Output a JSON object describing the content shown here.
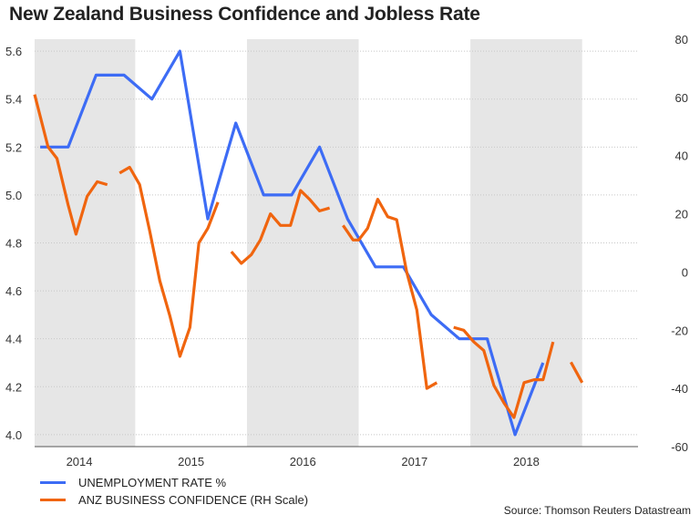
{
  "chart_data": {
    "type": "line",
    "title": "New Zealand Business Confidence and Jobless Rate",
    "source": "Source: Thomson Reuters Datastream",
    "x_axis": {
      "range": [
        2013.6,
        2019.0
      ],
      "tick_labels": [
        "2014",
        "2015",
        "2016",
        "2017",
        "2018"
      ],
      "tick_positions": [
        2014.0,
        2015.0,
        2016.0,
        2017.0,
        2018.0
      ]
    },
    "y_left": {
      "range": [
        3.95,
        5.65
      ],
      "ticks": [
        4.0,
        4.2,
        4.4,
        4.6,
        4.8,
        5.0,
        5.2,
        5.4,
        5.6
      ],
      "tick_labels": [
        "4.0",
        "4.2",
        "4.4",
        "4.6",
        "4.8",
        "5.0",
        "5.2",
        "5.4",
        "5.6"
      ]
    },
    "y_right": {
      "range": [
        -60,
        80
      ],
      "ticks": [
        -60,
        -40,
        -20,
        0,
        20,
        40,
        60,
        80
      ],
      "tick_labels": [
        "-60",
        "-40",
        "-20",
        "0",
        "20",
        "40",
        "60",
        "80"
      ]
    },
    "grid": true,
    "shaded_years": [
      [
        2013.6,
        2014.5
      ],
      [
        2015.5,
        2016.5
      ],
      [
        2017.5,
        2018.5
      ]
    ],
    "legend_position": "bottom-left",
    "series": [
      {
        "name": "UNEMPLOYMENT RATE %",
        "axis": "left",
        "color": "#3d6cf5",
        "segments": [
          [
            [
              2013.65,
              5.2
            ],
            [
              2013.9,
              5.2
            ],
            [
              2014.15,
              5.5
            ],
            [
              2014.4,
              5.5
            ],
            [
              2014.65,
              5.4
            ],
            [
              2014.9,
              5.6
            ],
            [
              2015.15,
              4.9
            ],
            [
              2015.4,
              5.3
            ],
            [
              2015.65,
              5.0
            ],
            [
              2015.9,
              5.0
            ],
            [
              2016.15,
              5.2
            ],
            [
              2016.4,
              4.9
            ],
            [
              2016.65,
              4.7
            ],
            [
              2016.9,
              4.7
            ],
            [
              2017.15,
              4.5
            ],
            [
              2017.4,
              4.4
            ],
            [
              2017.65,
              4.4
            ],
            [
              2017.9,
              4.0
            ],
            [
              2018.15,
              4.3
            ]
          ]
        ]
      },
      {
        "name": "ANZ BUSINESS CONFIDENCE (RH Scale)",
        "axis": "right",
        "color": "#f0650f",
        "segments": [
          [
            [
              2013.6,
              61
            ],
            [
              2013.72,
              43
            ],
            [
              2013.8,
              39
            ],
            [
              2013.9,
              23
            ],
            [
              2013.97,
              13
            ],
            [
              2014.07,
              26
            ],
            [
              2014.16,
              31
            ],
            [
              2014.25,
              30
            ]
          ],
          [
            [
              2014.36,
              34
            ],
            [
              2014.45,
              36
            ],
            [
              2014.54,
              30
            ],
            [
              2014.63,
              14
            ],
            [
              2014.72,
              -3
            ],
            [
              2014.81,
              -15
            ],
            [
              2014.9,
              -29
            ],
            [
              2014.99,
              -19
            ],
            [
              2015.07,
              10
            ],
            [
              2015.15,
              15
            ],
            [
              2015.24,
              24
            ]
          ],
          [
            [
              2015.36,
              7
            ],
            [
              2015.45,
              3
            ],
            [
              2015.54,
              6
            ],
            [
              2015.62,
              11
            ],
            [
              2015.71,
              20
            ],
            [
              2015.8,
              16
            ],
            [
              2015.89,
              16
            ],
            [
              2015.98,
              28
            ],
            [
              2016.06,
              25
            ],
            [
              2016.15,
              21
            ],
            [
              2016.24,
              22
            ]
          ],
          [
            [
              2016.36,
              16
            ],
            [
              2016.45,
              11
            ],
            [
              2016.5,
              11
            ],
            [
              2016.58,
              15
            ],
            [
              2016.67,
              25
            ],
            [
              2016.76,
              19
            ],
            [
              2016.84,
              18
            ],
            [
              2016.93,
              0
            ],
            [
              2017.02,
              -13
            ],
            [
              2017.11,
              -40
            ],
            [
              2017.2,
              -38
            ]
          ],
          [
            [
              2017.35,
              -19
            ],
            [
              2017.44,
              -20
            ],
            [
              2017.53,
              -24
            ],
            [
              2017.62,
              -27
            ],
            [
              2017.71,
              -39
            ],
            [
              2017.8,
              -45
            ],
            [
              2017.89,
              -50
            ],
            [
              2017.98,
              -38
            ],
            [
              2018.07,
              -37
            ],
            [
              2018.15,
              -37
            ],
            [
              2018.24,
              -24
            ]
          ],
          [
            [
              2018.4,
              -31
            ],
            [
              2018.5,
              -38
            ]
          ]
        ]
      }
    ]
  }
}
